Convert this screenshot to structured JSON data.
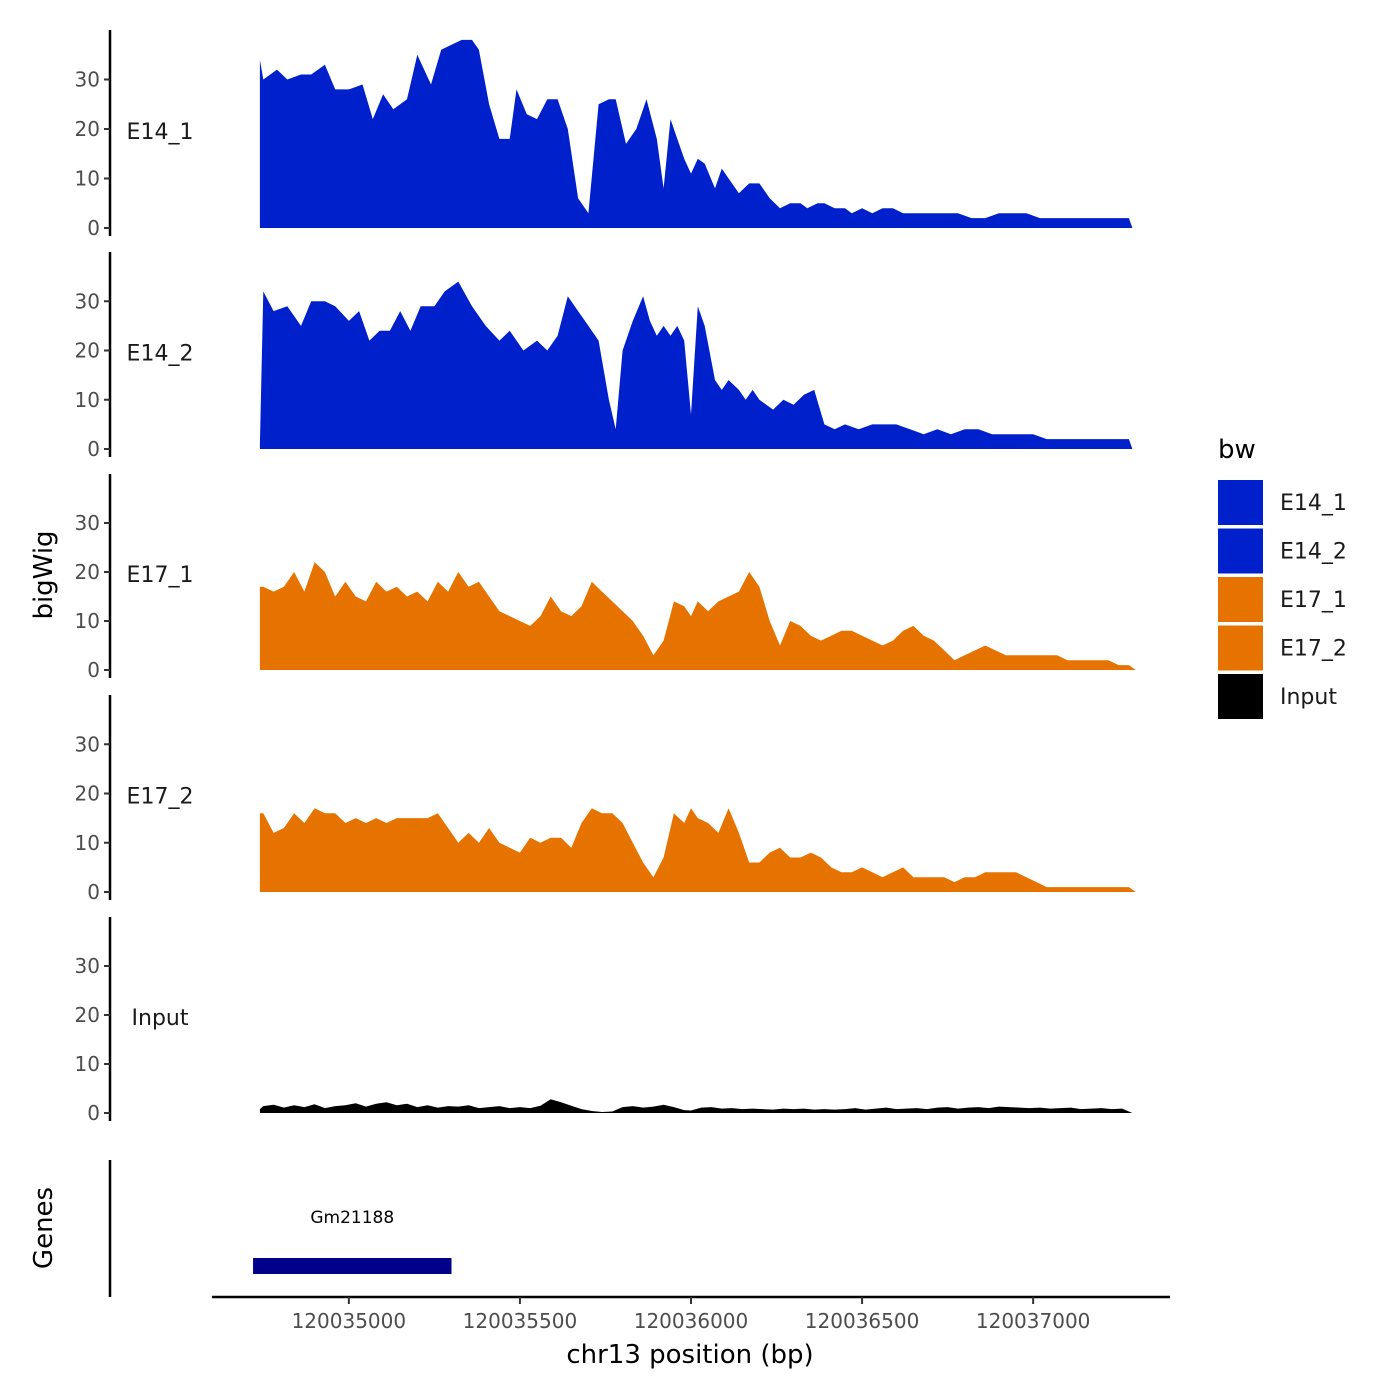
{
  "chart_data": {
    "type": "area",
    "ylabel": "bigWig",
    "xlabel": "chr13 position (bp)",
    "ylim": [
      0,
      40
    ],
    "yticks": [
      0,
      10,
      20,
      30
    ],
    "xlim": [
      120034600,
      120037400
    ],
    "xticks": [
      120035000,
      120035500,
      120036000,
      120036500,
      120037000
    ],
    "xtick_labels": [
      "120035000",
      "120035500",
      "120036000",
      "120036500",
      "120037000"
    ],
    "grid": false,
    "legend": {
      "title": "bw",
      "position": "right",
      "entries": [
        {
          "label": "E14_1",
          "color": "#0020cc"
        },
        {
          "label": "E14_2",
          "color": "#0020cc"
        },
        {
          "label": "E17_1",
          "color": "#e67300"
        },
        {
          "label": "E17_2",
          "color": "#e67300"
        },
        {
          "label": "Input",
          "color": "#000000"
        }
      ]
    },
    "series": [
      {
        "name": "E14_1",
        "color": "#0020cc",
        "x": [
          120034740,
          120034750,
          120034790,
          120034820,
          120034860,
          120034890,
          120034930,
          120034960,
          120035000,
          120035040,
          120035070,
          120035100,
          120035130,
          120035170,
          120035200,
          120035240,
          120035270,
          120035300,
          120035330,
          120035360,
          120035380,
          120035410,
          120035440,
          120035470,
          120035490,
          120035520,
          120035550,
          120035580,
          120035610,
          120035640,
          120035670,
          120035700,
          120035730,
          120035760,
          120035780,
          120035810,
          120035840,
          120035870,
          120035900,
          120035920,
          120035940,
          120035960,
          120035980,
          120036000,
          120036020,
          120036040,
          120036070,
          120036090,
          120036110,
          120036140,
          120036170,
          120036200,
          120036230,
          120036260,
          120036290,
          120036320,
          120036340,
          120036370,
          120036390,
          120036420,
          120036450,
          120036470,
          120036500,
          120036530,
          120036560,
          120036590,
          120036620,
          120036660,
          120036700,
          120036740,
          120036780,
          120036820,
          120036860,
          120036900,
          120036940,
          120036980,
          120037020,
          120037060,
          120037100,
          120037140,
          120037180,
          120037220,
          120037260,
          120037280,
          120037290
        ],
        "y": [
          34,
          30,
          32,
          30,
          31,
          31,
          33,
          28,
          28,
          29,
          22,
          27,
          24,
          26,
          35,
          29,
          36,
          37,
          38,
          38,
          36,
          25,
          18,
          18,
          28,
          23,
          22,
          26,
          26,
          20,
          6,
          3,
          25,
          26,
          26,
          17,
          20,
          26,
          18,
          8,
          22,
          18,
          14,
          11,
          14,
          13,
          8,
          12,
          10,
          7,
          9,
          9,
          6,
          4,
          5,
          5,
          4,
          5,
          5,
          4,
          4,
          3,
          4,
          3,
          4,
          4,
          3,
          3,
          3,
          3,
          3,
          2,
          2,
          3,
          3,
          3,
          2,
          2,
          2,
          2,
          2,
          2,
          2,
          2,
          0
        ]
      },
      {
        "name": "E14_2",
        "color": "#0020cc",
        "x": [
          120034740,
          120034750,
          120034780,
          120034820,
          120034860,
          120034890,
          120034930,
          120034960,
          120035000,
          120035030,
          120035060,
          120035090,
          120035120,
          120035150,
          120035180,
          120035210,
          120035250,
          120035280,
          120035320,
          120035360,
          120035400,
          120035440,
          120035470,
          120035510,
          120035550,
          120035580,
          120035610,
          120035640,
          120035670,
          120035700,
          120035730,
          120035760,
          120035780,
          120035800,
          120035830,
          120035860,
          120035880,
          120035900,
          120035920,
          120035940,
          120035960,
          120035980,
          120036000,
          120036020,
          120036040,
          120036070,
          120036090,
          120036110,
          120036140,
          120036160,
          120036180,
          120036200,
          120036220,
          120036240,
          120036270,
          120036300,
          120036330,
          120036360,
          120036390,
          120036420,
          120036450,
          120036490,
          120036530,
          120036560,
          120036600,
          120036640,
          120036680,
          120036720,
          120036760,
          120036800,
          120036840,
          120036880,
          120036920,
          120036960,
          120037000,
          120037040,
          120037080,
          120037120,
          120037160,
          120037200,
          120037240,
          120037280,
          120037290
        ],
        "y": [
          1,
          32,
          28,
          29,
          25,
          30,
          30,
          29,
          26,
          28,
          22,
          24,
          24,
          28,
          24,
          29,
          29,
          32,
          34,
          29,
          25,
          22,
          24,
          20,
          22,
          20,
          23,
          31,
          28,
          25,
          22,
          10,
          4,
          20,
          26,
          31,
          26,
          23,
          25,
          23,
          25,
          22,
          7,
          29,
          25,
          14,
          12,
          14,
          12,
          10,
          12,
          10,
          9,
          8,
          10,
          9,
          11,
          12,
          5,
          4,
          5,
          4,
          5,
          5,
          5,
          4,
          3,
          4,
          3,
          4,
          4,
          3,
          3,
          3,
          3,
          2,
          2,
          2,
          2,
          2,
          2,
          2,
          0
        ]
      },
      {
        "name": "E17_1",
        "color": "#e67300",
        "x": [
          120034740,
          120034750,
          120034780,
          120034810,
          120034840,
          120034870,
          120034900,
          120034930,
          120034960,
          120034990,
          120035020,
          120035050,
          120035080,
          120035110,
          120035140,
          120035170,
          120035200,
          120035230,
          120035260,
          120035290,
          120035320,
          120035350,
          120035380,
          120035410,
          120035440,
          120035470,
          120035500,
          120035530,
          120035560,
          120035590,
          120035620,
          120035650,
          120035680,
          120035710,
          120035740,
          120035770,
          120035800,
          120035830,
          120035860,
          120035890,
          120035920,
          120035950,
          120035980,
          120036000,
          120036020,
          120036050,
          120036080,
          120036110,
          120036140,
          120036170,
          120036200,
          120036230,
          120036260,
          120036290,
          120036320,
          120036350,
          120036380,
          120036410,
          120036440,
          120036470,
          120036500,
          120036530,
          120036560,
          120036590,
          120036620,
          120036650,
          120036680,
          120036710,
          120036740,
          120036770,
          120036800,
          120036830,
          120036860,
          120036890,
          120036920,
          120036950,
          120036980,
          120037010,
          120037040,
          120037070,
          120037100,
          120037130,
          120037160,
          120037190,
          120037220,
          120037250,
          120037280,
          120037300
        ],
        "y": [
          17,
          17,
          16,
          17,
          20,
          16,
          22,
          20,
          15,
          18,
          15,
          14,
          18,
          16,
          17,
          15,
          16,
          14,
          18,
          16,
          20,
          17,
          18,
          15,
          12,
          11,
          10,
          9,
          11,
          15,
          12,
          11,
          13,
          18,
          16,
          14,
          12,
          10,
          7,
          3,
          6,
          14,
          13,
          11,
          14,
          12,
          14,
          15,
          16,
          20,
          17,
          10,
          5,
          10,
          9,
          7,
          6,
          7,
          8,
          8,
          7,
          6,
          5,
          6,
          8,
          9,
          7,
          6,
          4,
          2,
          3,
          4,
          5,
          4,
          3,
          3,
          3,
          3,
          3,
          3,
          2,
          2,
          2,
          2,
          2,
          1,
          1,
          0
        ]
      },
      {
        "name": "E17_2",
        "color": "#e67300",
        "x": [
          120034740,
          120034750,
          120034780,
          120034810,
          120034840,
          120034870,
          120034900,
          120034930,
          120034960,
          120034990,
          120035020,
          120035050,
          120035080,
          120035110,
          120035140,
          120035170,
          120035200,
          120035230,
          120035260,
          120035290,
          120035320,
          120035350,
          120035380,
          120035410,
          120035440,
          120035470,
          120035500,
          120035530,
          120035560,
          120035590,
          120035620,
          120035650,
          120035680,
          120035710,
          120035740,
          120035770,
          120035800,
          120035830,
          120035860,
          120035890,
          120035920,
          120035950,
          120035980,
          120036000,
          120036020,
          120036050,
          120036080,
          120036110,
          120036140,
          120036170,
          120036200,
          120036230,
          120036260,
          120036290,
          120036320,
          120036350,
          120036380,
          120036410,
          120036440,
          120036470,
          120036500,
          120036530,
          120036560,
          120036590,
          120036620,
          120036650,
          120036680,
          120036710,
          120036740,
          120036770,
          120036800,
          120036830,
          120036860,
          120036890,
          120036920,
          120036950,
          120036980,
          120037010,
          120037040,
          120037070,
          120037100,
          120037130,
          120037160,
          120037190,
          120037220,
          120037250,
          120037280,
          120037300
        ],
        "y": [
          16,
          16,
          12,
          13,
          16,
          14,
          17,
          16,
          16,
          14,
          15,
          14,
          15,
          14,
          15,
          15,
          15,
          15,
          16,
          13,
          10,
          12,
          10,
          13,
          10,
          9,
          8,
          11,
          10,
          11,
          11,
          9,
          14,
          17,
          16,
          16,
          14,
          10,
          6,
          3,
          7,
          16,
          14,
          17,
          15,
          14,
          12,
          17,
          12,
          6,
          6,
          8,
          9,
          7,
          7,
          8,
          7,
          5,
          4,
          4,
          5,
          4,
          3,
          4,
          5,
          3,
          3,
          3,
          3,
          2,
          3,
          3,
          4,
          4,
          4,
          4,
          3,
          2,
          1,
          1,
          1,
          1,
          1,
          1,
          1,
          1,
          1,
          0
        ]
      },
      {
        "name": "Input",
        "color": "#000000",
        "x": [
          120034740,
          120034750,
          120034780,
          120034810,
          120034840,
          120034870,
          120034900,
          120034930,
          120034960,
          120034990,
          120035020,
          120035050,
          120035080,
          120035110,
          120035140,
          120035170,
          120035200,
          120035230,
          120035260,
          120035290,
          120035320,
          120035350,
          120035380,
          120035410,
          120035440,
          120035470,
          120035500,
          120035530,
          120035560,
          120035590,
          120035620,
          120035650,
          120035680,
          120035710,
          120035740,
          120035770,
          120035800,
          120035830,
          120035860,
          120035890,
          120035920,
          120035950,
          120035980,
          120036000,
          120036030,
          120036060,
          120036090,
          120036120,
          120036150,
          120036180,
          120036210,
          120036240,
          120036270,
          120036300,
          120036330,
          120036360,
          120036390,
          120036420,
          120036450,
          120036480,
          120036510,
          120036540,
          120036570,
          120036600,
          120036630,
          120036660,
          120036690,
          120036720,
          120036750,
          120036780,
          120036810,
          120036840,
          120036870,
          120036900,
          120036930,
          120036960,
          120036990,
          120037020,
          120037050,
          120037080,
          120037110,
          120037140,
          120037170,
          120037200,
          120037230,
          120037260,
          120037290
        ],
        "y": [
          0.8,
          1.4,
          1.7,
          1.1,
          1.6,
          1.2,
          1.8,
          1.0,
          1.4,
          1.6,
          2.0,
          1.3,
          1.9,
          2.2,
          1.6,
          1.9,
          1.2,
          1.6,
          1.1,
          1.4,
          1.3,
          1.6,
          1.0,
          1.2,
          1.4,
          1.0,
          1.2,
          1.0,
          1.5,
          2.8,
          2.2,
          1.5,
          0.8,
          0.4,
          0.2,
          0.3,
          1.2,
          1.4,
          1.1,
          1.3,
          1.7,
          1.2,
          0.6,
          0.5,
          1.1,
          1.2,
          0.9,
          1.0,
          0.8,
          0.9,
          0.8,
          0.7,
          0.9,
          0.8,
          0.9,
          0.7,
          0.8,
          0.7,
          0.8,
          1.0,
          0.7,
          0.9,
          1.1,
          0.8,
          0.9,
          1.0,
          0.8,
          1.1,
          1.2,
          0.9,
          1.1,
          1.2,
          1.0,
          1.3,
          1.2,
          1.1,
          1.0,
          1.1,
          0.9,
          1.0,
          1.1,
          0.8,
          0.9,
          1.0,
          0.8,
          0.9,
          0.0
        ]
      }
    ],
    "genes": {
      "label": "Genes",
      "items": [
        {
          "name": "Gm21188",
          "start": 120034720,
          "end": 120035300,
          "color": "#00008b"
        }
      ]
    }
  }
}
